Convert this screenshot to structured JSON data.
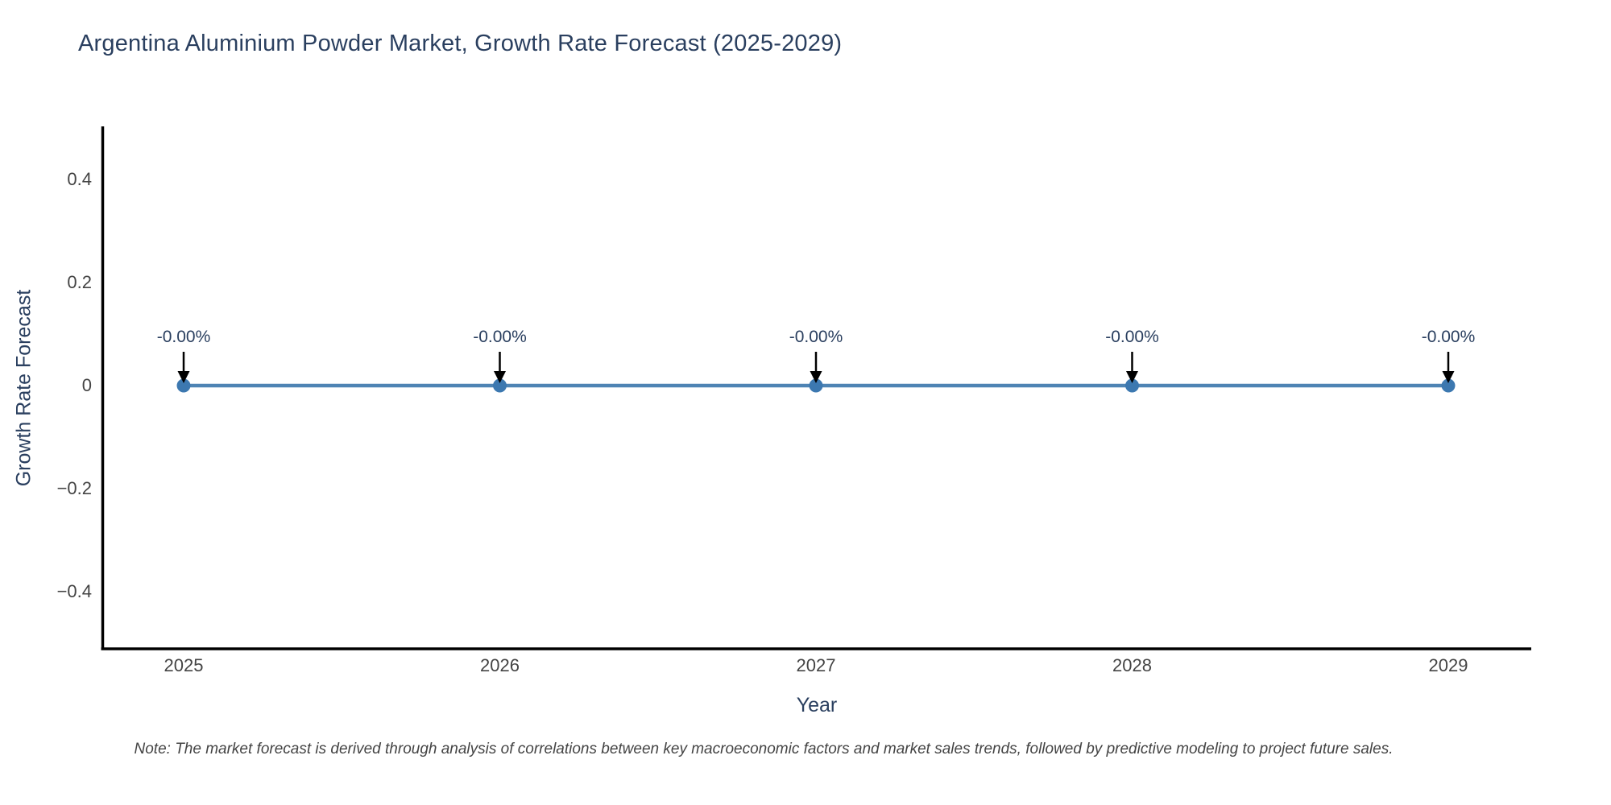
{
  "chart_data": {
    "type": "line",
    "title": "Argentina Aluminium Powder Market, Growth Rate Forecast (2025-2029)",
    "x": [
      "2025",
      "2026",
      "2027",
      "2028",
      "2029"
    ],
    "series": [
      {
        "name": "Growth Rate Forecast",
        "values": [
          0,
          0,
          0,
          0,
          0
        ]
      }
    ],
    "point_labels": [
      "-0.00%",
      "-0.00%",
      "-0.00%",
      "-0.00%",
      "-0.00%"
    ],
    "xlabel": "Year",
    "ylabel": "Growth Rate Forecast",
    "yticks": [
      {
        "label": "0.4",
        "value": 0.4
      },
      {
        "label": "0.2",
        "value": 0.2
      },
      {
        "label": "0",
        "value": 0
      },
      {
        "label": "−0.2",
        "value": -0.2
      },
      {
        "label": "−0.4",
        "value": -0.4
      }
    ],
    "ylim": [
      -0.51,
      0.5
    ],
    "grid": false,
    "legend_visible": false,
    "line_color": "#4e84b4",
    "marker_color": "#3c78b0",
    "axis_color": "#000000",
    "arrow_color": "#000000"
  },
  "note": {
    "text": "Note: The market forecast is derived through analysis of correlations between key macroeconomic factors and market sales trends, followed by predictive modeling to project future sales."
  },
  "colors": {
    "title_text": "#2a3f5f",
    "tick_text": "#444444",
    "note_text": "#444444",
    "background": "#ffffff"
  }
}
